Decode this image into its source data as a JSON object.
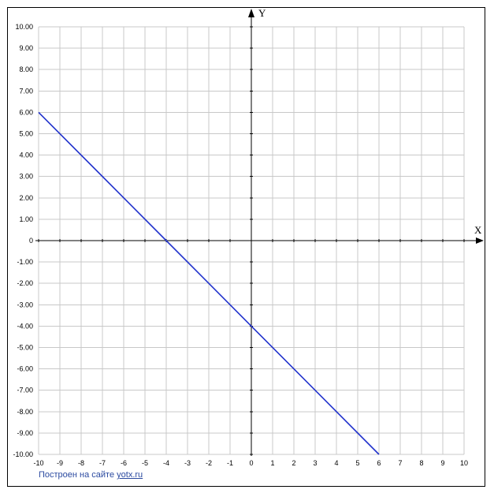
{
  "chart_data": {
    "type": "line",
    "xlabel": "X",
    "ylabel": "Y",
    "xlim": [
      -10,
      10
    ],
    "ylim": [
      -10,
      10
    ],
    "grid": true,
    "x_ticks": [
      "-10",
      "-9",
      "-8",
      "-7",
      "-6",
      "-5",
      "-4",
      "-3",
      "-2",
      "-1",
      "0",
      "1",
      "2",
      "3",
      "4",
      "5",
      "6",
      "7",
      "8",
      "9",
      "10"
    ],
    "y_ticks": [
      "10.00",
      "9.00",
      "8.00",
      "7.00",
      "6.00",
      "5.00",
      "4.00",
      "3.00",
      "2.00",
      "1.00",
      "0",
      "-1.00",
      "-2.00",
      "-3.00",
      "-4.00",
      "-5.00",
      "-6.00",
      "-7.00",
      "-8.00",
      "-9.00",
      "-10.00"
    ],
    "series": [
      {
        "color": "#2233cc",
        "x": [
          -10,
          -4,
          0,
          6
        ],
        "y": [
          6,
          0,
          -4,
          -10
        ]
      }
    ],
    "colors": {
      "grid": "#c8c8c8",
      "axis": "#000000",
      "line": "#2233cc"
    }
  },
  "footer": {
    "text": "Построен на сайте ",
    "link": "yotx.ru"
  }
}
